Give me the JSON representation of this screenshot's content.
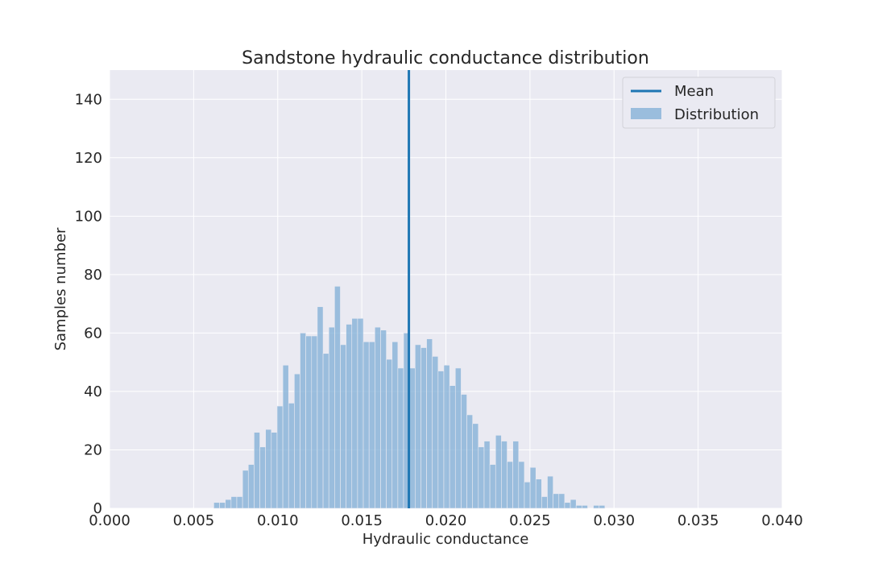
{
  "chart_data": {
    "type": "histogram",
    "title": "Sandstone hydraulic conductance distribution",
    "xlabel": "Hydraulic conductance",
    "ylabel": "Samples number",
    "xlim": [
      0.0,
      0.04
    ],
    "ylim": [
      0,
      150
    ],
    "x_ticks": [
      "0.000",
      "0.005",
      "0.010",
      "0.015",
      "0.020",
      "0.025",
      "0.030",
      "0.035",
      "0.040"
    ],
    "y_ticks": [
      "0",
      "20",
      "40",
      "60",
      "80",
      "100",
      "120",
      "140"
    ],
    "grid": true,
    "legend_position": "top-right",
    "mean": 0.0178,
    "bin_start": 0.0062,
    "bin_width": 0.000342,
    "values": [
      2,
      2,
      3,
      4,
      4,
      13,
      15,
      26,
      21,
      27,
      26,
      35,
      49,
      36,
      46,
      60,
      59,
      59,
      69,
      53,
      62,
      76,
      56,
      63,
      65,
      65,
      57,
      57,
      62,
      61,
      51,
      57,
      48,
      60,
      48,
      56,
      55,
      58,
      52,
      47,
      49,
      42,
      48,
      39,
      32,
      29,
      21,
      23,
      15,
      25,
      23,
      16,
      23,
      16,
      9,
      14,
      10,
      4,
      11,
      5,
      5,
      2,
      3,
      1,
      1,
      0,
      1,
      1
    ],
    "series": [
      {
        "name": "Mean",
        "color": "#1f77b4"
      },
      {
        "name": "Distribution",
        "color": "#7fadd6"
      }
    ]
  }
}
